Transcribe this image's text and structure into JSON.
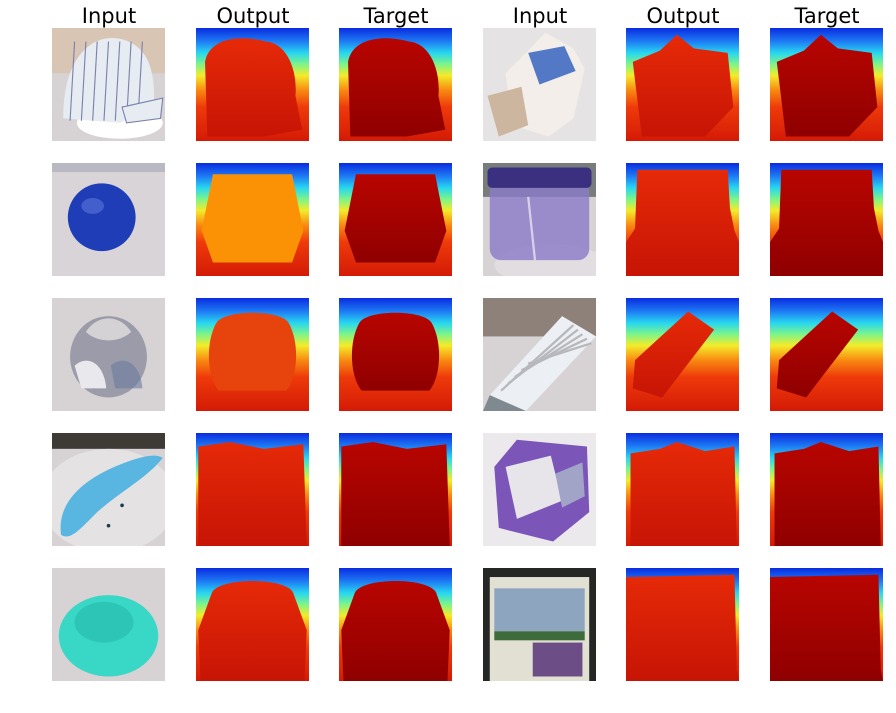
{
  "headers": [
    "Input",
    "Output",
    "Target",
    "Input",
    "Output",
    "Target"
  ],
  "rows": [
    {
      "left": {
        "input": {
          "subject": "cap",
          "colors": [
            "#e6ecf1",
            "#7c82ad",
            "#d8c5b4"
          ]
        },
        "output": {
          "silhouette": "cap"
        },
        "target": {
          "silhouette": "cap"
        }
      },
      "right": {
        "input": {
          "subject": "bag",
          "colors": [
            "#f3eee9",
            "#5278c6",
            "#ccb69f"
          ]
        },
        "output": {
          "silhouette": "bag"
        },
        "target": {
          "silhouette": "bag"
        }
      }
    },
    {
      "left": {
        "input": {
          "subject": "ball",
          "colors": [
            "#1f3db7",
            "#d9d4d8",
            "#5c76d8"
          ]
        },
        "output": {
          "silhouette": "ball"
        },
        "target": {
          "silhouette": "ball"
        }
      },
      "right": {
        "input": {
          "subject": "jar",
          "colors": [
            "#8b7ac8",
            "#3b2f80",
            "#c9c2d0"
          ]
        },
        "output": {
          "silhouette": "jar"
        },
        "target": {
          "silhouette": "jar"
        }
      }
    },
    {
      "left": {
        "input": {
          "subject": "garlic",
          "colors": [
            "#d5d2d5",
            "#6b7ba0",
            "#9b9ba9"
          ]
        },
        "output": {
          "silhouette": "garlic"
        },
        "target": {
          "silhouette": "garlic"
        }
      },
      "right": {
        "input": {
          "subject": "keyboard",
          "colors": [
            "#eceff3",
            "#b6b8bc",
            "#7e8a8f"
          ]
        },
        "output": {
          "silhouette": "keyboard"
        },
        "target": {
          "silhouette": "keyboard"
        }
      }
    },
    {
      "left": {
        "input": {
          "subject": "banana",
          "colors": [
            "#58b6e0",
            "#e5e2e3",
            "#1d3b4a"
          ]
        },
        "output": {
          "silhouette": "banana"
        },
        "target": {
          "silhouette": "banana"
        }
      },
      "right": {
        "input": {
          "subject": "package",
          "colors": [
            "#7b56b8",
            "#e7e5ea",
            "#a1a3c7"
          ]
        },
        "output": {
          "silhouette": "package"
        },
        "target": {
          "silhouette": "package"
        }
      }
    },
    {
      "left": {
        "input": {
          "subject": "sponge",
          "colors": [
            "#39d7c6",
            "#c9c6c6",
            "#22b4a5"
          ]
        },
        "output": {
          "silhouette": "sponge"
        },
        "target": {
          "silhouette": "sponge"
        }
      },
      "right": {
        "input": {
          "subject": "box",
          "colors": [
            "#e2dfd3",
            "#6d4d86",
            "#3d6b3b"
          ]
        },
        "output": {
          "silhouette": "box"
        },
        "target": {
          "silhouette": "box"
        }
      }
    }
  ]
}
